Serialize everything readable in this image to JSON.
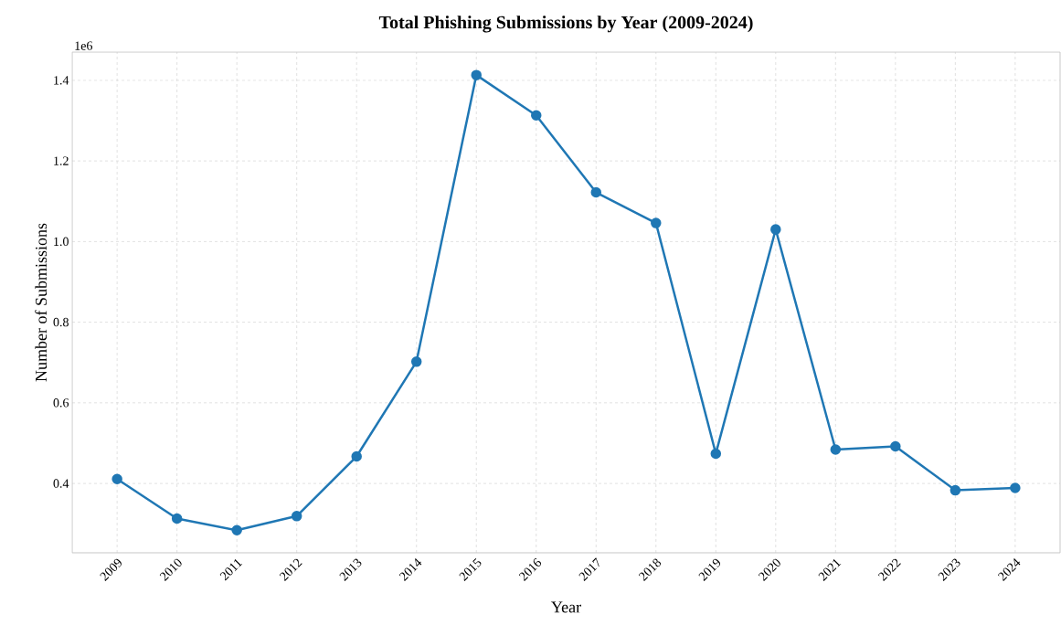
{
  "chart_data": {
    "type": "line",
    "title": "Total Phishing Submissions by Year (2009-2024)",
    "xlabel": "Year",
    "ylabel": "Number of Submissions",
    "categories": [
      "2009",
      "2010",
      "2011",
      "2012",
      "2013",
      "2014",
      "2015",
      "2016",
      "2017",
      "2018",
      "2019",
      "2020",
      "2021",
      "2022",
      "2023",
      "2024"
    ],
    "series": [
      {
        "color": "#1f77b4",
        "values": [
          0.411,
          0.313,
          0.284,
          0.319,
          0.467,
          0.702,
          1.413,
          1.313,
          1.122,
          1.046,
          0.474,
          1.03,
          0.484,
          0.492,
          0.383,
          0.389
        ]
      }
    ],
    "ylim": [
      0.228,
      1.47
    ],
    "yticks": [
      0.4,
      0.6,
      0.8,
      {
        "value": 1.0,
        "label": "1.0"
      },
      1.2,
      1.4
    ],
    "annotations": [
      "1e6"
    ],
    "grid": true,
    "marker": "circle",
    "line_style": "solid"
  }
}
